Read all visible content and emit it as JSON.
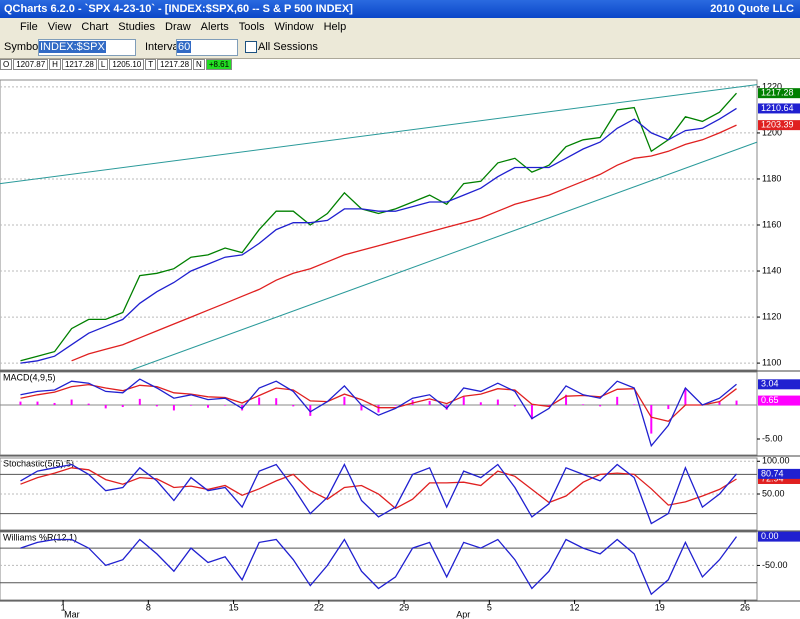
{
  "window": {
    "title": "QCharts 6.2.0 - `SPX 4-23-10` - [INDEX:$SPX,60 -- S & P 500 INDEX]",
    "company": "2010 Quote LLC"
  },
  "menu": [
    "File",
    "View",
    "Chart",
    "Studies",
    "Draw",
    "Alerts",
    "Tools",
    "Window",
    "Help"
  ],
  "toolbar": {
    "symbol_label": "Symbol",
    "symbol": "INDEX:$SPX",
    "interval_label": "Interval",
    "interval": "60",
    "all_sessions": "All Sessions"
  },
  "quote": [
    {
      "label": "O",
      "value": "1207.87"
    },
    {
      "label": "H",
      "value": "1217.28"
    },
    {
      "label": "L",
      "value": "1205.10"
    },
    {
      "label": "T",
      "value": "1217.28"
    },
    {
      "label": "N",
      "value": "+8.61"
    }
  ],
  "chart_data": [
    {
      "type": "line",
      "xlim": [
        -3.7,
        40.7
      ],
      "ylim": [
        1097,
        1223
      ],
      "yticks": [
        1100,
        1120,
        1140,
        1160,
        1180,
        1200,
        1220
      ],
      "grid": true,
      "x": [
        -2.5,
        -1.5,
        -0.5,
        0.5,
        1.5,
        2.5,
        3.5,
        4.5,
        5.5,
        6.5,
        7.5,
        8.5,
        9.5,
        10.5,
        11.5,
        12.5,
        13.5,
        14.5,
        15.5,
        16.5,
        17.5,
        18.5,
        19.5,
        20.5,
        21.5,
        22.5,
        23.5,
        24.5,
        25.5,
        26.5,
        27.5,
        28.5,
        29.5,
        30.5,
        31.5,
        32.5,
        33.5,
        34.5,
        35.5,
        36.5,
        37.5,
        38.5,
        39.5
      ],
      "series": [
        {
          "color": "#008000",
          "label_last": true,
          "values": [
            1101,
            1103,
            1105,
            1115,
            1119,
            1119,
            1122,
            1138,
            1139,
            1141,
            1146,
            1147,
            1150,
            1148,
            1158,
            1166,
            1166,
            1160,
            1165,
            1174,
            1167,
            1165,
            1167,
            1170,
            1173,
            1169,
            1178,
            1179,
            1187,
            1189,
            1183,
            1186,
            1194,
            1197,
            1198,
            1210,
            1211,
            1192,
            1197,
            1207,
            1205,
            1209,
            1217.28
          ]
        },
        {
          "color": "#2020d0",
          "label_last": true,
          "values": [
            1100,
            1101,
            1103,
            1108,
            1113,
            1116,
            1119,
            1126,
            1131,
            1135,
            1140,
            1143,
            1146,
            1147,
            1152,
            1158,
            1161,
            1161,
            1162,
            1167,
            1167,
            1166,
            1166,
            1168,
            1170,
            1170,
            1173,
            1176,
            1181,
            1185,
            1185,
            1185,
            1189,
            1193,
            1196,
            1202,
            1206,
            1200,
            1197,
            1201,
            1202,
            1206,
            1210.64
          ]
        },
        {
          "color": "#e02020",
          "label_last": true,
          "values": [
            null,
            null,
            null,
            1101,
            1104,
            1106,
            1108,
            1111,
            1114,
            1117,
            1120,
            1123,
            1126,
            1129,
            1132,
            1136,
            1139,
            1141,
            1144,
            1147,
            1149,
            1151,
            1153,
            1155,
            1157,
            1159,
            1161,
            1163,
            1166,
            1169,
            1171,
            1173,
            1176,
            1179,
            1182,
            1186,
            1189,
            1190,
            1192,
            1195,
            1197,
            1200,
            1203.39
          ]
        }
      ],
      "trendlines": [
        {
          "color": "#2a9a9a",
          "x": [
            -3.7,
            40.7
          ],
          "y": [
            1178,
            1221
          ]
        },
        {
          "color": "#2a9a9a",
          "x": [
            4.0,
            40.7
          ],
          "y": [
            1097,
            1196
          ]
        }
      ]
    },
    {
      "type": "line",
      "title": "MACD(4,9,5)",
      "xlim": [
        -3.7,
        40.7
      ],
      "ylim": [
        -7.35,
        4.85
      ],
      "yticks": [
        {
          "value": -5,
          "label": "-5.00"
        }
      ],
      "grid": false,
      "x": [
        -2.5,
        -1.5,
        -0.5,
        0.5,
        1.5,
        2.5,
        3.5,
        4.5,
        5.5,
        6.5,
        7.5,
        8.5,
        9.5,
        10.5,
        11.5,
        12.5,
        13.5,
        14.5,
        15.5,
        16.5,
        17.5,
        18.5,
        19.5,
        20.5,
        21.5,
        22.5,
        23.5,
        24.5,
        25.5,
        26.5,
        27.5,
        28.5,
        29.5,
        30.5,
        31.5,
        32.5,
        33.5,
        34.5,
        35.5,
        36.5,
        37.5,
        38.5,
        39.5
      ],
      "series": [
        {
          "color": "#ff00ff",
          "kind": "bar",
          "label_last": true,
          "values": [
            0.5,
            0.5,
            0.3,
            0.8,
            0.2,
            -0.5,
            -0.3,
            0.9,
            -0.2,
            -0.8,
            -0.1,
            -0.4,
            -0.1,
            -0.8,
            1.1,
            1.0,
            -0.2,
            -1.6,
            0.0,
            1.2,
            -0.8,
            -1.1,
            -0.1,
            0.7,
            0.6,
            -0.7,
            1.2,
            0.4,
            0.8,
            -0.2,
            -2.1,
            -0.3,
            1.5,
            0.1,
            -0.2,
            1.2,
            0.1,
            -4.2,
            -0.6,
            2.5,
            0.0,
            0.5,
            0.65
          ]
        },
        {
          "color": "#e02020",
          "values": [
            1.0,
            1.5,
            1.9,
            2.7,
            3.0,
            2.5,
            2.1,
            2.9,
            2.7,
            1.8,
            1.6,
            1.2,
            1.1,
            0.3,
            1.4,
            2.5,
            2.2,
            0.6,
            0.5,
            1.6,
            0.8,
            -0.4,
            -0.4,
            0.3,
            0.9,
            0.2,
            1.3,
            1.6,
            2.4,
            2.2,
            0.1,
            -0.2,
            1.3,
            1.4,
            1.2,
            2.3,
            2.4,
            -1.8,
            -2.4,
            0.0,
            0.0,
            0.5,
            2.39
          ]
        },
        {
          "color": "#2020d0",
          "label_last": true,
          "values": [
            1.5,
            2.0,
            2.2,
            3.5,
            3.2,
            2.0,
            1.8,
            3.8,
            2.5,
            1.0,
            1.5,
            0.8,
            1.0,
            -0.5,
            2.5,
            3.5,
            2.0,
            -1.0,
            0.5,
            2.8,
            0.0,
            -1.5,
            -0.5,
            1.0,
            1.5,
            -0.5,
            2.5,
            2.0,
            3.2,
            2.0,
            -2.0,
            -0.5,
            2.8,
            1.5,
            1.0,
            3.5,
            2.5,
            -6.0,
            -3.0,
            2.5,
            0.0,
            1.0,
            3.04
          ]
        }
      ]
    },
    {
      "type": "line",
      "title": "Stochastic(5(5),5)",
      "xlim": [
        -3.7,
        40.7
      ],
      "ylim": [
        -5,
        105
      ],
      "yticks": [
        {
          "value": 100,
          "label": "100.00"
        },
        {
          "value": 50,
          "label": "50.00"
        }
      ],
      "levels": [
        80,
        20
      ],
      "grid": true,
      "x": [
        -2.5,
        -1.5,
        -0.5,
        0.5,
        1.5,
        2.5,
        3.5,
        4.5,
        5.5,
        6.5,
        7.5,
        8.5,
        9.5,
        10.5,
        11.5,
        12.5,
        13.5,
        14.5,
        15.5,
        16.5,
        17.5,
        18.5,
        19.5,
        20.5,
        21.5,
        22.5,
        23.5,
        24.5,
        25.5,
        26.5,
        27.5,
        28.5,
        29.5,
        30.5,
        31.5,
        32.5,
        33.5,
        34.5,
        35.5,
        36.5,
        37.5,
        38.5,
        39.5
      ],
      "series": [
        {
          "color": "#e02020",
          "label_last": true,
          "values": [
            65,
            75,
            82,
            90,
            87,
            72,
            65,
            75,
            73,
            60,
            62,
            57,
            63,
            48,
            58,
            70,
            80,
            55,
            42,
            60,
            63,
            50,
            28,
            42,
            67,
            67,
            68,
            63,
            85,
            77,
            57,
            37,
            47,
            68,
            80,
            82,
            80,
            58,
            33,
            38,
            47,
            57,
            72.94
          ]
        },
        {
          "color": "#2020d0",
          "label_last": true,
          "values": [
            70,
            85,
            90,
            95,
            80,
            55,
            60,
            90,
            70,
            40,
            75,
            55,
            60,
            30,
            85,
            95,
            60,
            20,
            45,
            95,
            40,
            15,
            30,
            80,
            90,
            30,
            85,
            75,
            95,
            60,
            15,
            35,
            90,
            80,
            70,
            95,
            75,
            5,
            20,
            90,
            30,
            50,
            80.74
          ]
        }
      ]
    },
    {
      "type": "line",
      "title": "Williams %R(12,1)",
      "xlim": [
        -3.7,
        40.7
      ],
      "ylim": [
        -110,
        8
      ],
      "yticks": [
        {
          "value": -50,
          "label": "-50.00"
        }
      ],
      "levels": [
        -20,
        -80
      ],
      "grid": true,
      "x": [
        -2.5,
        -1.5,
        -0.5,
        0.5,
        1.5,
        2.5,
        3.5,
        4.5,
        5.5,
        6.5,
        7.5,
        8.5,
        9.5,
        10.5,
        11.5,
        12.5,
        13.5,
        14.5,
        15.5,
        16.5,
        17.5,
        18.5,
        19.5,
        20.5,
        21.5,
        22.5,
        23.5,
        24.5,
        25.5,
        26.5,
        27.5,
        28.5,
        29.5,
        30.5,
        31.5,
        32.5,
        33.5,
        34.5,
        35.5,
        36.5,
        37.5,
        38.5,
        39.5
      ],
      "series": [
        {
          "color": "#2020d0",
          "label_last": true,
          "last_label": "0.00",
          "values": [
            -20,
            -10,
            -5,
            -5,
            -20,
            -50,
            -40,
            -5,
            -30,
            -60,
            -20,
            -45,
            -35,
            -75,
            -10,
            -5,
            -40,
            -85,
            -50,
            -5,
            -60,
            -90,
            -70,
            -20,
            -10,
            -70,
            -10,
            -20,
            -5,
            -40,
            -90,
            -60,
            -5,
            -20,
            -30,
            -5,
            -30,
            -100,
            -75,
            -10,
            -70,
            -40,
            0
          ]
        }
      ],
      "xticks": [
        {
          "value": 0,
          "label": "1"
        },
        {
          "value": 5,
          "label": "8"
        },
        {
          "value": 10,
          "label": "15"
        },
        {
          "value": 15,
          "label": "22"
        },
        {
          "value": 20,
          "label": "29"
        },
        {
          "value": 25,
          "label": "5"
        },
        {
          "value": 30,
          "label": "12"
        },
        {
          "value": 35,
          "label": "19"
        },
        {
          "value": 40,
          "label": "26"
        }
      ],
      "months": [
        {
          "value": 0,
          "label": "Mar"
        },
        {
          "value": 23,
          "label": "Apr"
        }
      ]
    }
  ]
}
